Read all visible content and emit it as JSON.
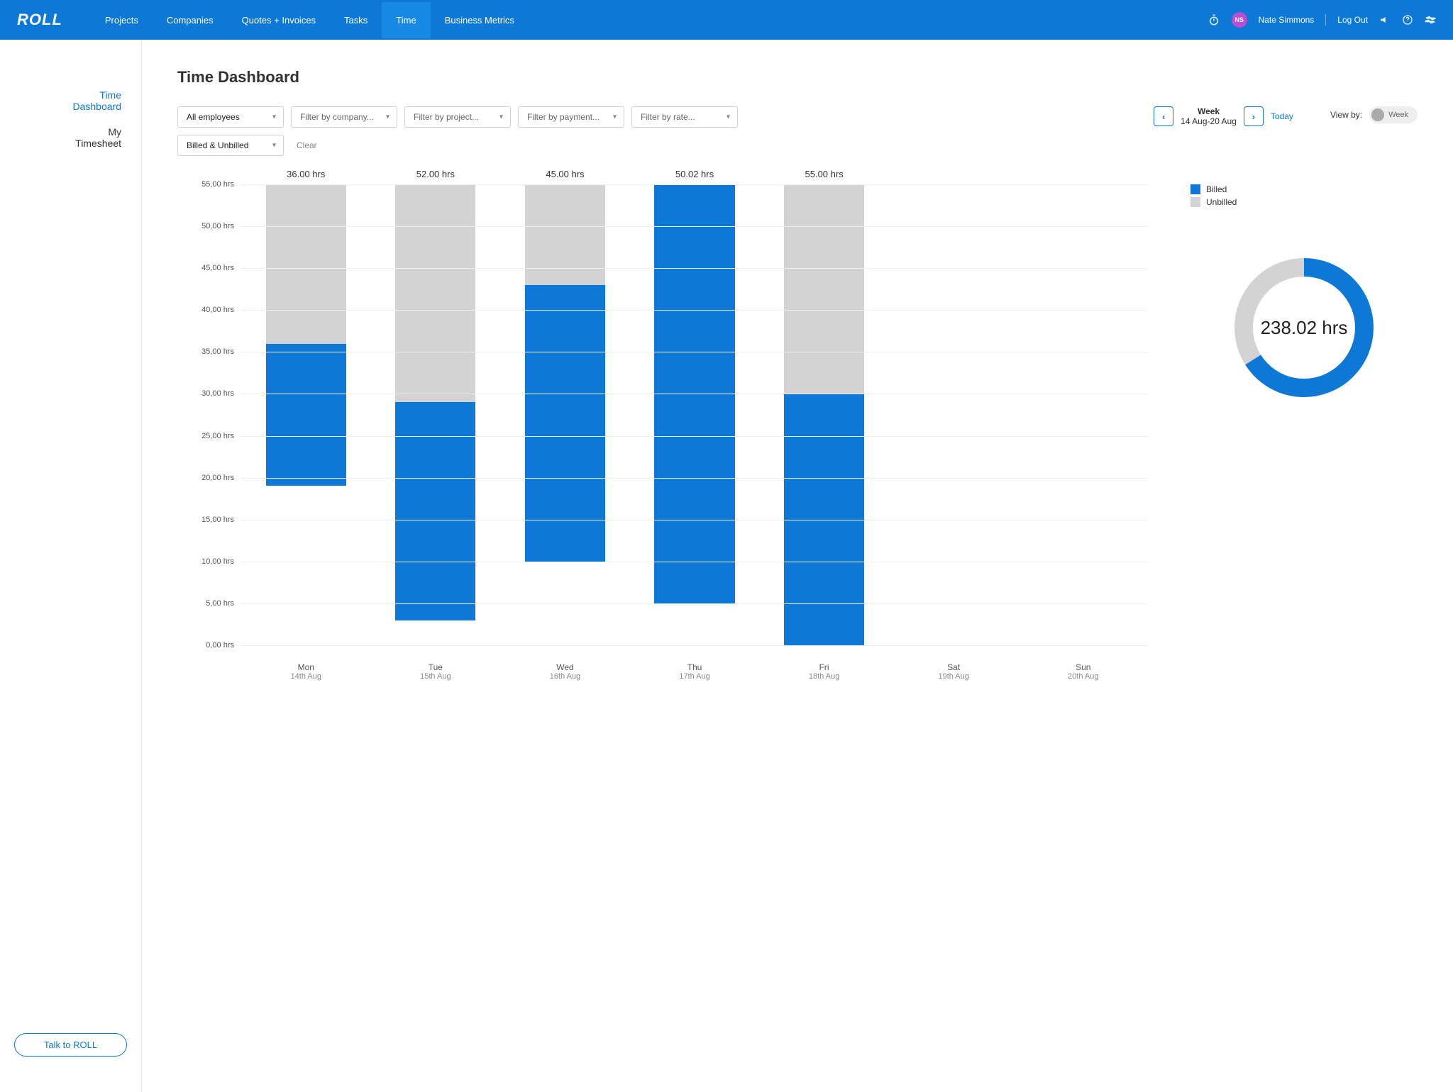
{
  "brand": "ROLL",
  "nav": {
    "items": [
      "Projects",
      "Companies",
      "Quotes + Invoices",
      "Tasks",
      "Time",
      "Business Metrics"
    ],
    "active_index": 4
  },
  "user": {
    "initials": "NS",
    "name": "Nate Simmons",
    "logout": "Log Out"
  },
  "sidebar": {
    "items": [
      {
        "label": "Time Dashboard",
        "active": true
      },
      {
        "label": "My Timesheet",
        "active": false
      }
    ],
    "talk_button": "Talk to ROLL"
  },
  "page": {
    "title": "Time Dashboard"
  },
  "filters": {
    "employees": "All employees",
    "company_placeholder": "Filter by company...",
    "project_placeholder": "Filter by project...",
    "payment_placeholder": "Filter by payment...",
    "rate_placeholder": "Filter by rate...",
    "billed": "Billed & Unbilled",
    "clear": "Clear"
  },
  "week_nav": {
    "title": "Week",
    "range": "14 Aug-20 Aug",
    "today": "Today"
  },
  "viewby": {
    "label": "View by:",
    "value": "Week"
  },
  "chart": {
    "type": "stacked-bar",
    "ylabel_suffix": " hrs",
    "ylim": [
      0,
      55
    ],
    "ytick_step": 5,
    "yticks": [
      "0,00 hrs",
      "5,00 hrs",
      "10,00 hrs",
      "15,00 hrs",
      "20,00 hrs",
      "25,00 hrs",
      "30,00 hrs",
      "35,00 hrs",
      "40,00 hrs",
      "45,00 hrs",
      "50,00 hrs",
      "55,00 hrs"
    ],
    "grid_color": "#eeeeee",
    "colors": {
      "billed": "#0d78d6",
      "unbilled": "#d3d3d3"
    },
    "bar_width_pct": 62,
    "legend": [
      {
        "label": "Billed",
        "color": "#0d78d6"
      },
      {
        "label": "Unbilled",
        "color": "#d3d3d3"
      }
    ],
    "days": [
      {
        "day": "Mon",
        "date": "14th Aug",
        "total_label": "36.00 hrs",
        "billed": 17,
        "unbilled": 19
      },
      {
        "day": "Tue",
        "date": "15th Aug",
        "total_label": "52.00 hrs",
        "billed": 26,
        "unbilled": 26
      },
      {
        "day": "Wed",
        "date": "16th Aug",
        "total_label": "45.00 hrs",
        "billed": 33,
        "unbilled": 12
      },
      {
        "day": "Thu",
        "date": "17th Aug",
        "total_label": "50.02 hrs",
        "billed": 50.02,
        "unbilled": 0
      },
      {
        "day": "Fri",
        "date": "18th Aug",
        "total_label": "55.00 hrs",
        "billed": 30,
        "unbilled": 25
      },
      {
        "day": "Sat",
        "date": "19th Aug",
        "total_label": "",
        "billed": 0,
        "unbilled": 0
      },
      {
        "day": "Sun",
        "date": "20th Aug",
        "total_label": "",
        "billed": 0,
        "unbilled": 0
      }
    ]
  },
  "donut": {
    "total_label": "238.02 hrs",
    "billed_pct": 66,
    "colors": {
      "billed": "#0d78d6",
      "unbilled": "#d3d3d3",
      "bg": "#ffffff"
    },
    "stroke_width": 26
  }
}
